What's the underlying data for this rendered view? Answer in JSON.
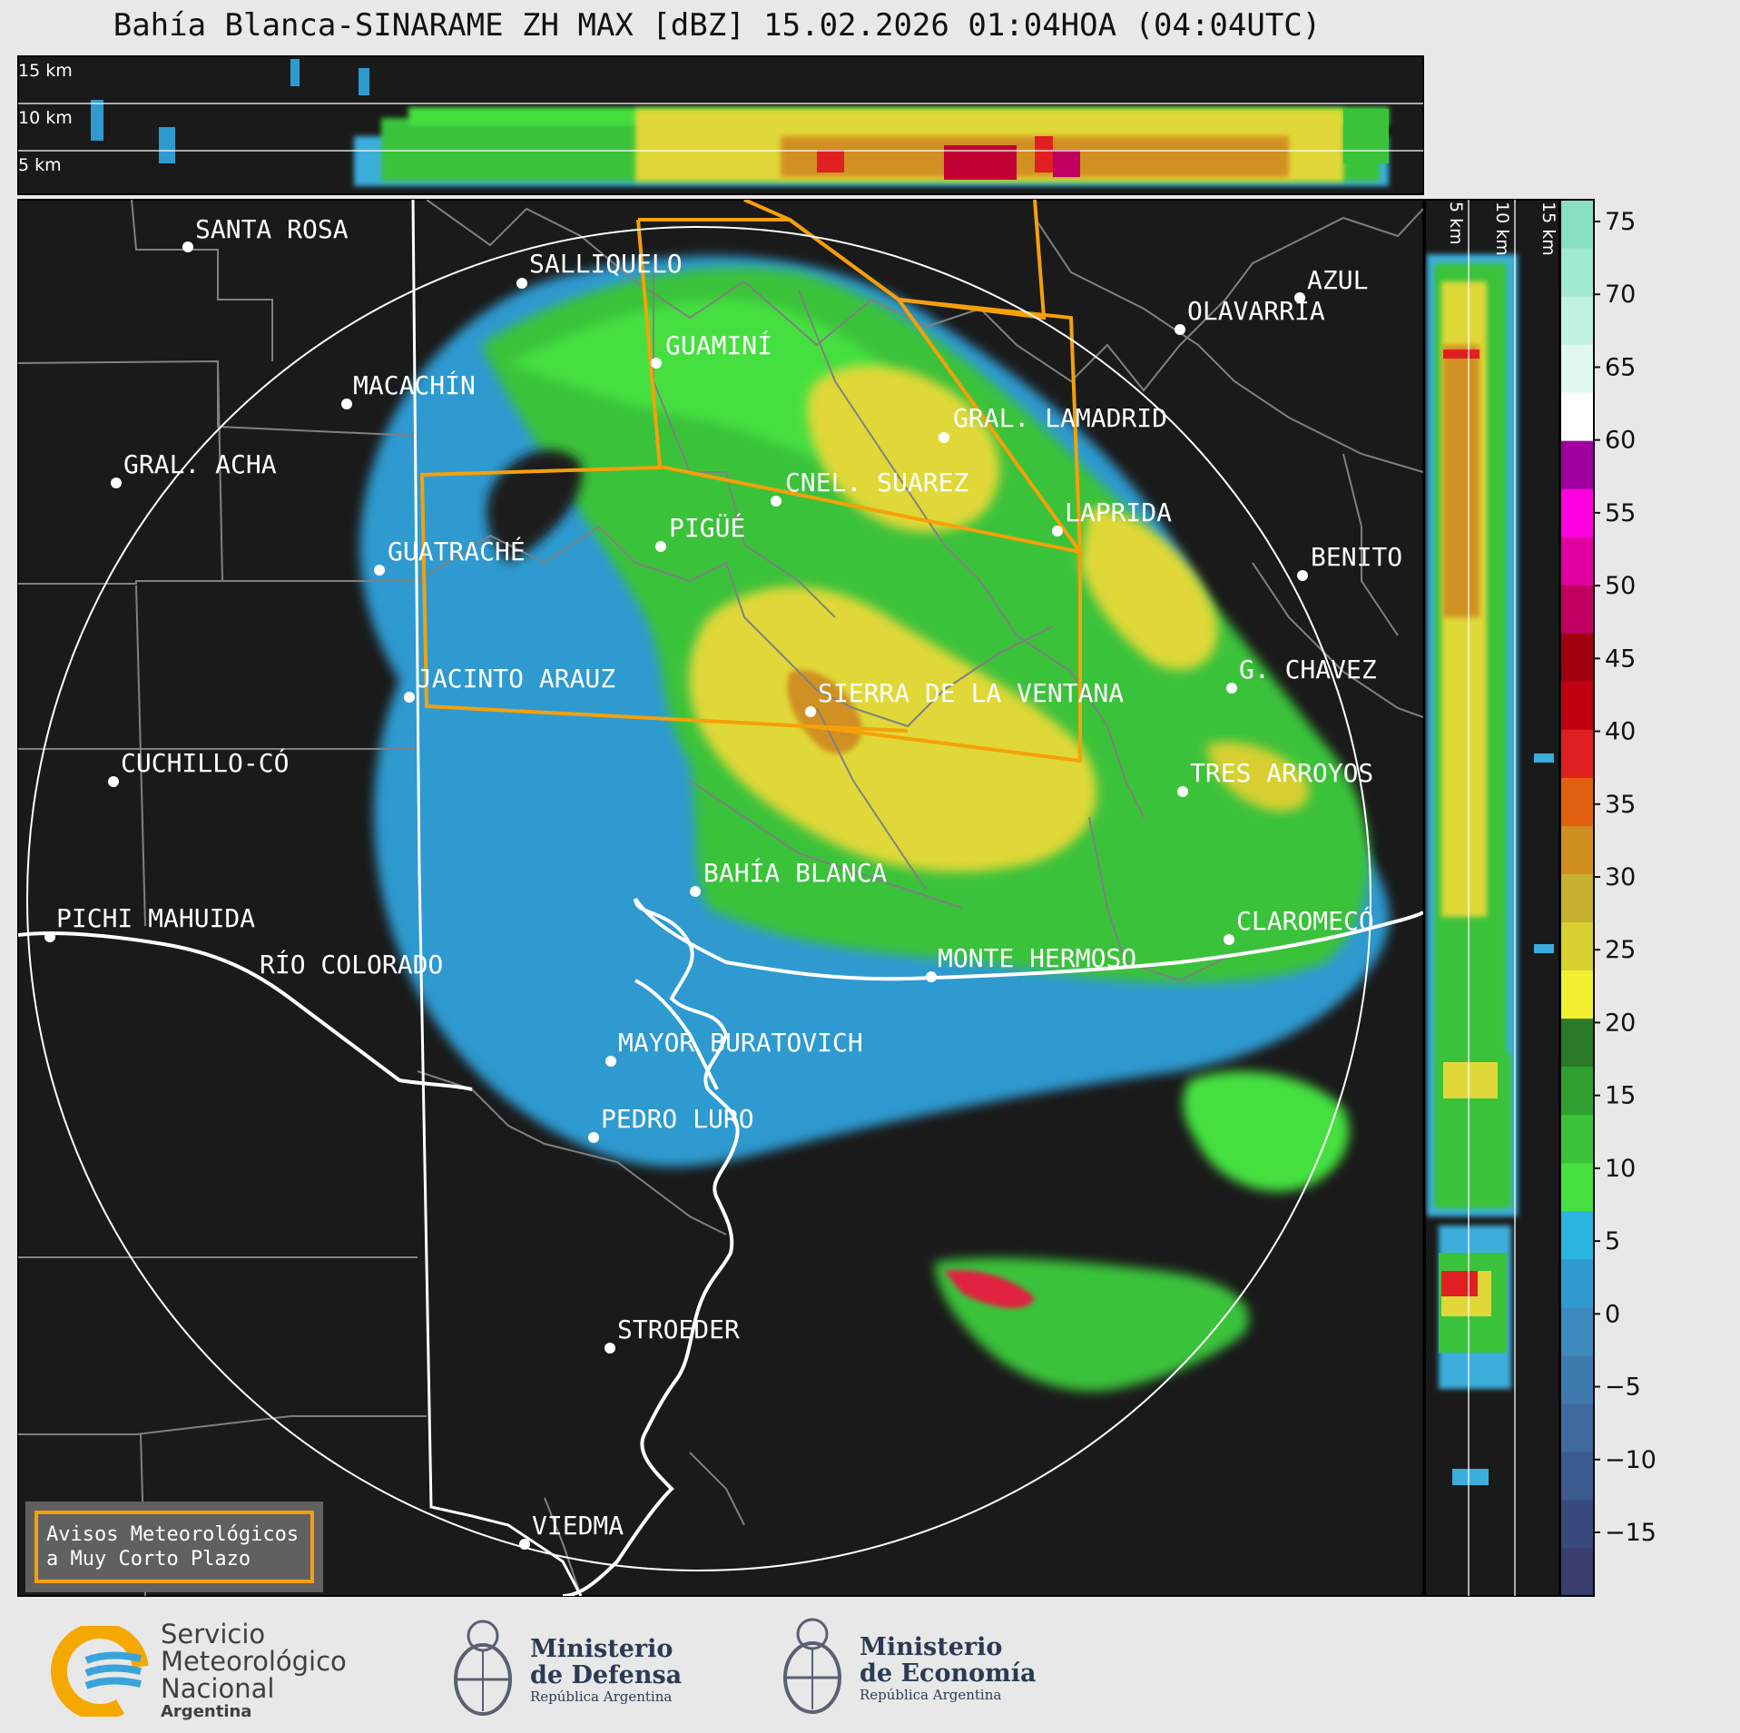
{
  "title": "Bahía Blanca-SINARAME ZH MAX [dBZ] 15.02.2026 01:04HOA (04:04UTC)",
  "top_panel": {
    "height_labels": [
      "15 km",
      "10 km",
      "5 km"
    ]
  },
  "side_panel": {
    "height_labels": [
      "5 km",
      "10 km",
      "15 km"
    ]
  },
  "colorbar": {
    "ticks": [
      "75",
      "70",
      "65",
      "60",
      "55",
      "50",
      "45",
      "40",
      "35",
      "30",
      "25",
      "20",
      "15",
      "10",
      "5",
      "0",
      "−5",
      "−10",
      "−15"
    ],
    "colors": [
      "#3a3d6e",
      "#3b4a7e",
      "#3d5a8e",
      "#3f6a9e",
      "#3e7aae",
      "#3e8abe",
      "#2f9ad0",
      "#2ab5e0",
      "#45e040",
      "#3ac23a",
      "#2ea030",
      "#2a7a28",
      "#f0f030",
      "#d8d030",
      "#c8b030",
      "#d09020",
      "#e06010",
      "#e02020",
      "#c00010",
      "#a00010",
      "#c00060",
      "#e000a0",
      "#ff00e0",
      "#a000a0",
      "#ffffff",
      "#e0f8f0",
      "#c0f0e0",
      "#a0e8d0",
      "#88e0c0"
    ]
  },
  "cities": [
    {
      "name": "SANTA ROSA"
    },
    {
      "name": "SALLIQUELO"
    },
    {
      "name": "AZUL"
    },
    {
      "name": "OLAVARRÍA"
    },
    {
      "name": "GUAMINÍ"
    },
    {
      "name": "MACACHÍN"
    },
    {
      "name": "GRAL. LAMADRID"
    },
    {
      "name": "GRAL. ACHA"
    },
    {
      "name": "CNEL. SUAREZ"
    },
    {
      "name": "LAPRIDA"
    },
    {
      "name": "PIGÜÉ"
    },
    {
      "name": "GUATRACHÉ"
    },
    {
      "name": "BENITO"
    },
    {
      "name": "G. CHAVEZ"
    },
    {
      "name": "JACINTO ARAUZ"
    },
    {
      "name": "SIERRA DE LA VENTANA"
    },
    {
      "name": "CUCHILLO-CÓ"
    },
    {
      "name": "TRES ARROYOS"
    },
    {
      "name": "BAHÍA BLANCA"
    },
    {
      "name": "PICHI MAHUIDA"
    },
    {
      "name": "CLAROMECÓ"
    },
    {
      "name": "MONTE HERMOSO"
    },
    {
      "name": "RÍO COLORADO"
    },
    {
      "name": "MAYOR BURATOVICH"
    },
    {
      "name": "PEDRO LURO"
    },
    {
      "name": "STROEDER"
    },
    {
      "name": "VIEDMA"
    }
  ],
  "legend_box": {
    "line1": "Avisos Meteorológicos",
    "line2": "a Muy Corto Plazo",
    "color": "#f5a00a"
  },
  "logos": {
    "smn": {
      "line1": "Servicio",
      "line2": "Meteorológico",
      "line3": "Nacional",
      "line4": "Argentina"
    },
    "defensa": {
      "line1": "Ministerio",
      "line2": "de Defensa",
      "line3": "República Argentina"
    },
    "economia": {
      "line1": "Ministerio",
      "line2": "de Economía",
      "line3": "República Argentina"
    }
  }
}
